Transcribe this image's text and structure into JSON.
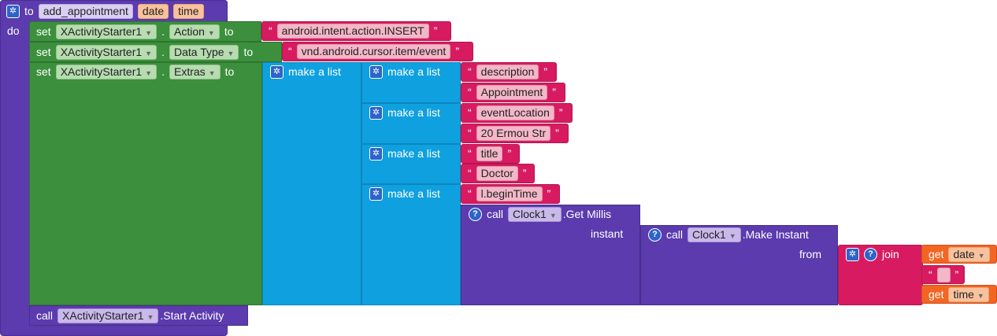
{
  "procedure": {
    "to_label": "to",
    "name": "add_appointment",
    "params": [
      "date",
      "time"
    ],
    "do_label": "do"
  },
  "set_rows": [
    {
      "set": "set",
      "component": "XActivityStarter1",
      "dot": ".",
      "property": "Action",
      "to": "to",
      "value": "android.intent.action.INSERT"
    },
    {
      "set": "set",
      "component": "XActivityStarter1",
      "dot": ".",
      "property": "Data Type",
      "to": "to",
      "value": "vnd.android.cursor.item/event"
    },
    {
      "set": "set",
      "component": "XActivityStarter1",
      "dot": ".",
      "property": "Extras",
      "to": "to"
    }
  ],
  "make_list_label": "make a list",
  "extras_pairs": [
    {
      "key": "description",
      "value": "Appointment"
    },
    {
      "key": "eventLocation",
      "value": "20 Ermou Str"
    },
    {
      "key": "title",
      "value": "Doctor"
    },
    {
      "key": "l.beginTime"
    }
  ],
  "get_millis": {
    "call": "call",
    "component": "Clock1",
    "method": ".Get Millis",
    "arg": "instant"
  },
  "make_instant": {
    "call": "call",
    "component": "Clock1",
    "method": ".Make Instant",
    "arg": "from"
  },
  "join": {
    "label": "join",
    "get_label": "get",
    "var1": "date",
    "sep": " ",
    "var2": "time"
  },
  "start_activity": {
    "call": "call",
    "component": "XActivityStarter1",
    "method": ".Start Activity"
  },
  "icons": {
    "dropdown": "chevron-down-icon",
    "mutator": "gear-icon",
    "help": "question-icon"
  },
  "colors": {
    "procedure": "#5b3bad",
    "setter": "#3c8f3c",
    "list": "#0fa0df",
    "text": "#d81b60",
    "clock": "#5b3bad",
    "variable": "#f26522"
  }
}
